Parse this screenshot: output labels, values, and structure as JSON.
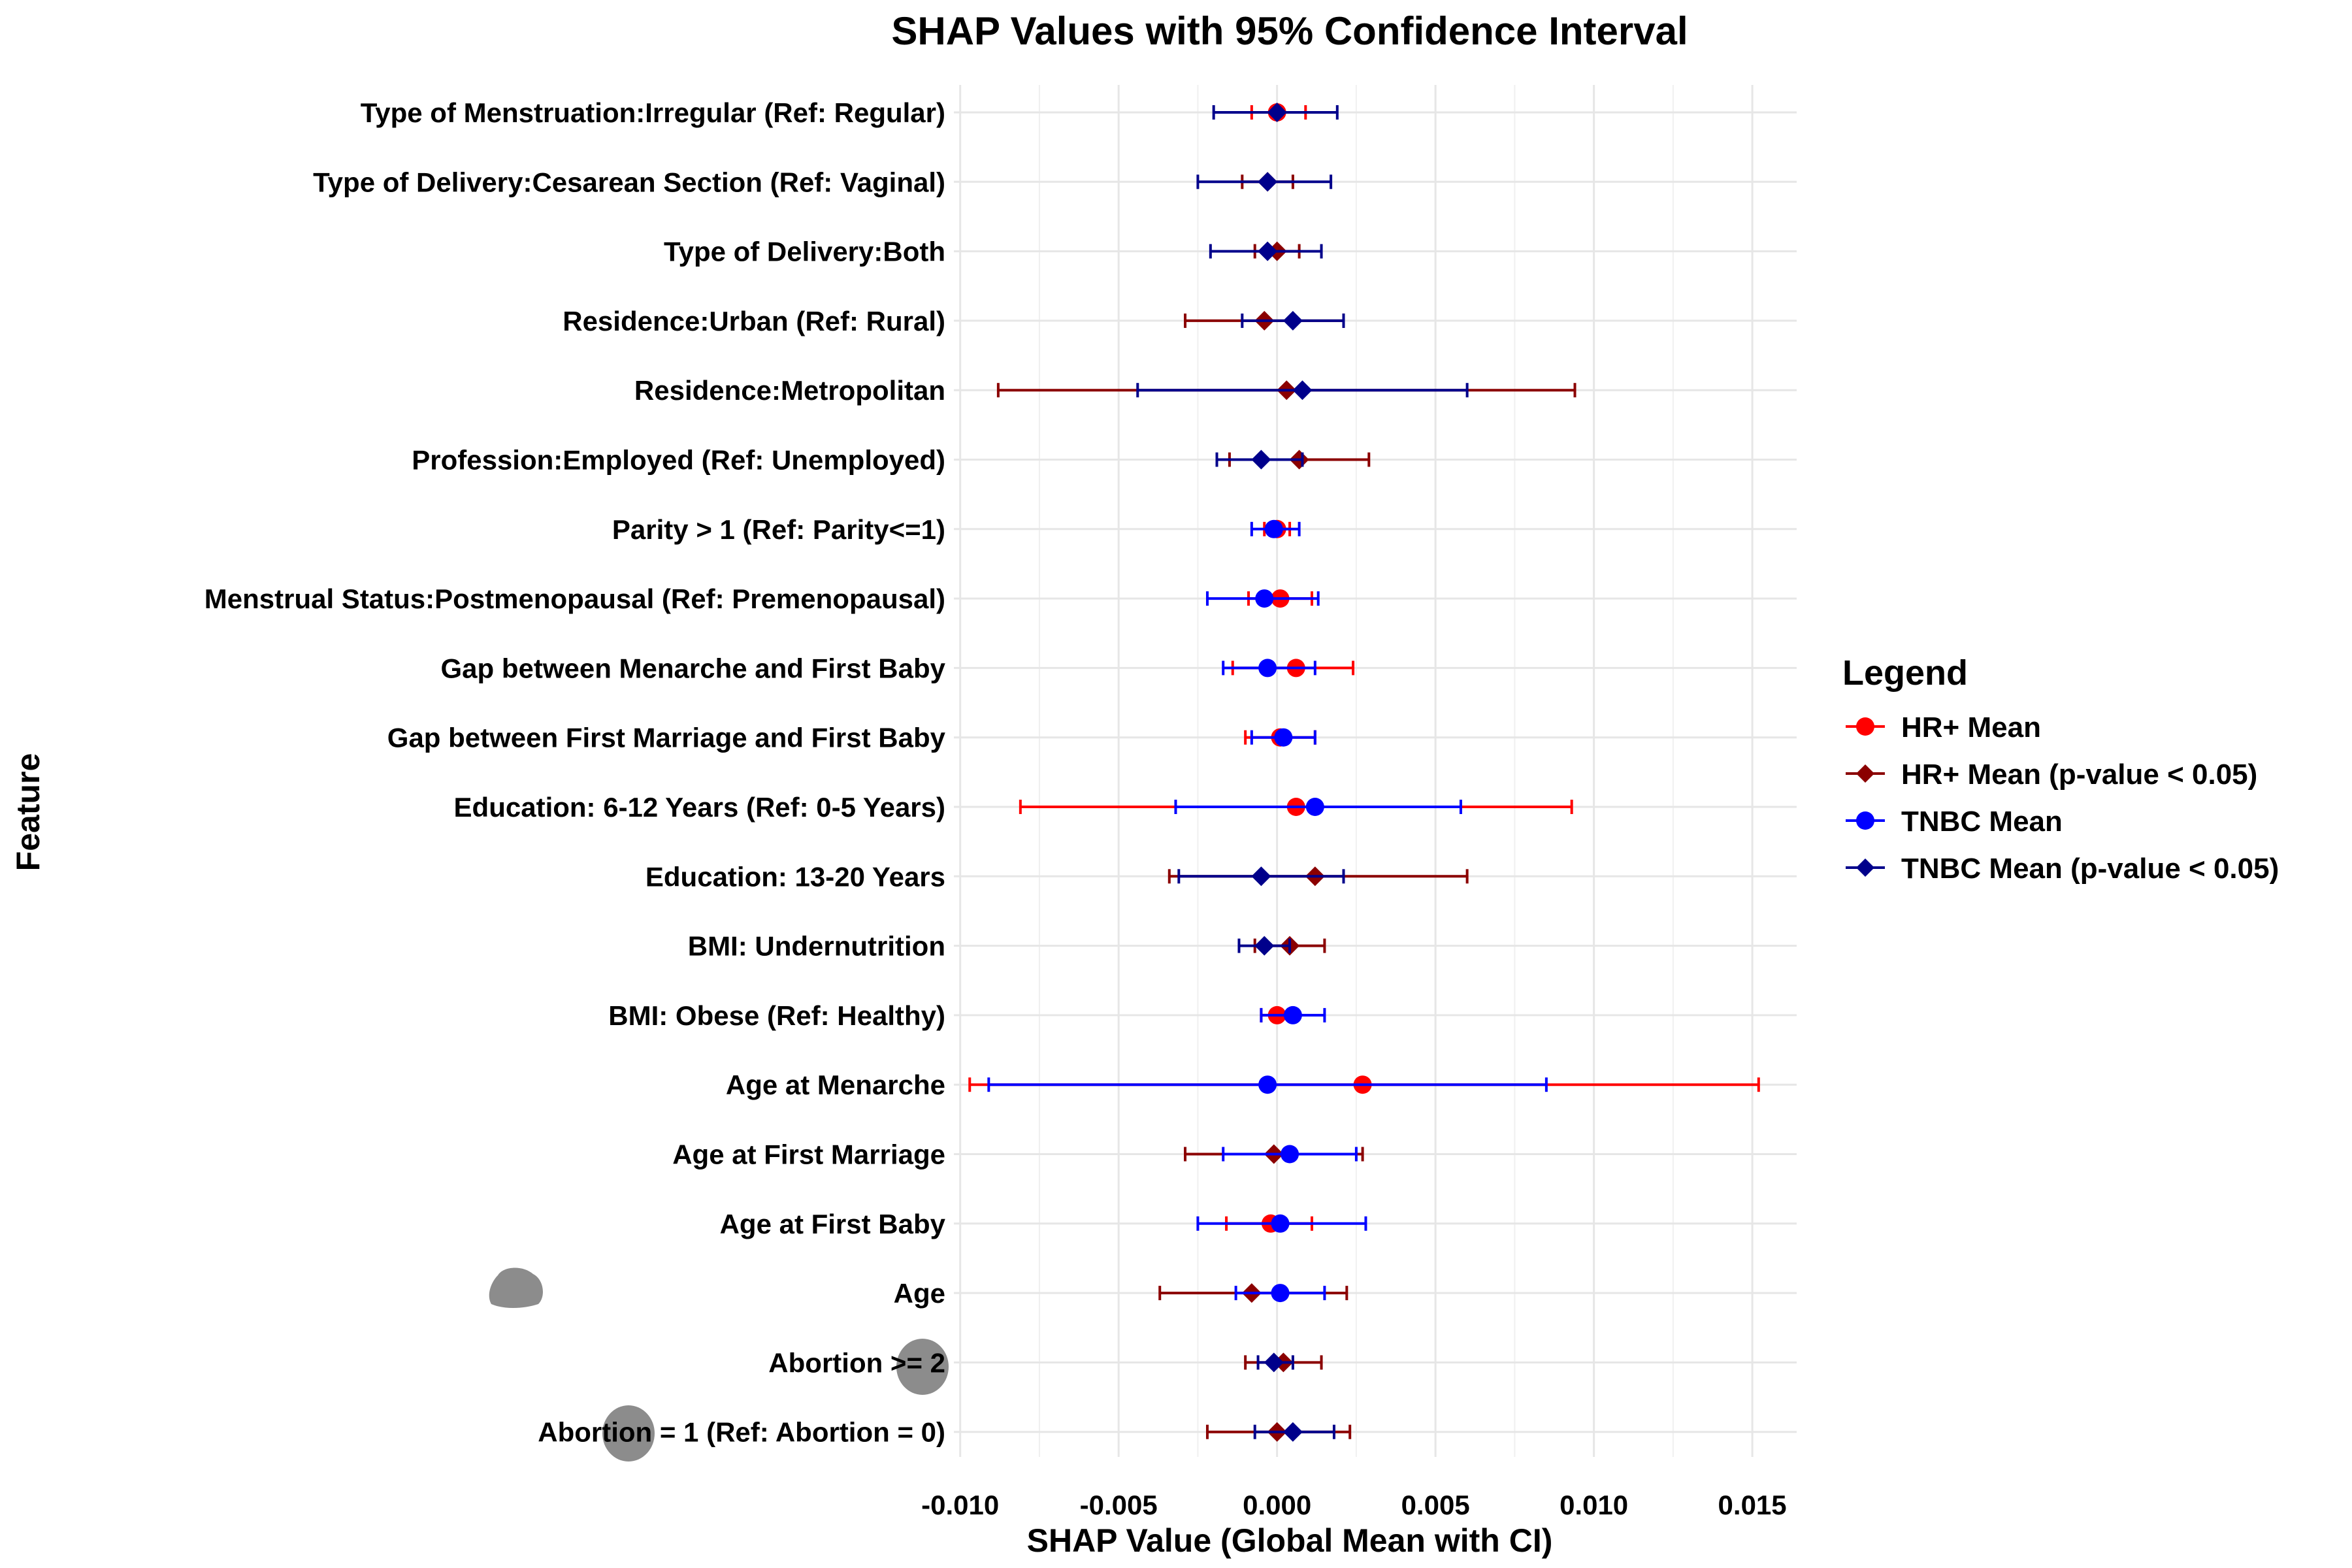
{
  "chart_data": {
    "type": "scatter",
    "title": "SHAP Values with 95% Confidence Interval",
    "xlabel": "SHAP Value (Global Mean with CI)",
    "ylabel": "Feature",
    "xlim": [
      -0.0102,
      0.0164
    ],
    "xticks": [
      -0.01,
      -0.005,
      0.0,
      0.005,
      0.01,
      0.015
    ],
    "xtick_labels": [
      "-0.010",
      "-0.005",
      "0.000",
      "0.005",
      "0.010",
      "0.015"
    ],
    "grid": true,
    "legend": {
      "title": "Legend",
      "placement": "right",
      "entries": [
        {
          "label": "HR+ Mean",
          "color": "#ff0000",
          "marker": "circle"
        },
        {
          "label": "HR+ Mean (p-value < 0.05)",
          "color": "#8b0000",
          "marker": "diamond"
        },
        {
          "label": "TNBC Mean",
          "color": "#0000ff",
          "marker": "circle"
        },
        {
          "label": "TNBC Mean (p-value < 0.05)",
          "color": "#00008b",
          "marker": "diamond"
        }
      ]
    },
    "categories": [
      "Type of Menstruation:Irregular (Ref: Regular)",
      "Type of Delivery:Cesarean Section (Ref: Vaginal)",
      "Type of Delivery:Both",
      "Residence:Urban (Ref: Rural)",
      "Residence:Metropolitan",
      "Profession:Employed (Ref: Unemployed)",
      "Parity > 1 (Ref: Parity<=1)",
      "Menstrual Status:Postmenopausal (Ref: Premenopausal)",
      "Gap between Menarche and First Baby",
      "Gap between First Marriage and First Baby",
      "Education: 6-12 Years (Ref: 0-5 Years)",
      "Education: 13-20 Years",
      "BMI: Undernutrition",
      "BMI: Obese (Ref: Healthy)",
      "Age at Menarche",
      "Age at First Marriage",
      "Age at First Baby",
      "Age",
      "Abortion >= 2",
      "Abortion = 1 (Ref: Abortion = 0)"
    ],
    "series": [
      {
        "name": "HR+",
        "points": [
          {
            "mean": 0.0,
            "lo": -0.0008,
            "hi": 0.0009,
            "sig": false
          },
          {
            "mean": -0.0003,
            "lo": -0.0011,
            "hi": 0.0005,
            "sig": true
          },
          {
            "mean": 0.0,
            "lo": -0.0007,
            "hi": 0.0007,
            "sig": true
          },
          {
            "mean": -0.0004,
            "lo": -0.0029,
            "hi": 0.0021,
            "sig": true
          },
          {
            "mean": 0.0003,
            "lo": -0.0088,
            "hi": 0.0094,
            "sig": true
          },
          {
            "mean": 0.0007,
            "lo": -0.0015,
            "hi": 0.0029,
            "sig": true
          },
          {
            "mean": 0.0,
            "lo": -0.0004,
            "hi": 0.0004,
            "sig": false
          },
          {
            "mean": 0.0001,
            "lo": -0.0009,
            "hi": 0.0011,
            "sig": false
          },
          {
            "mean": 0.0006,
            "lo": -0.0014,
            "hi": 0.0024,
            "sig": false
          },
          {
            "mean": 0.0001,
            "lo": -0.001,
            "hi": 0.0012,
            "sig": false
          },
          {
            "mean": 0.0006,
            "lo": -0.0081,
            "hi": 0.0093,
            "sig": false
          },
          {
            "mean": 0.0012,
            "lo": -0.0034,
            "hi": 0.006,
            "sig": true
          },
          {
            "mean": 0.0004,
            "lo": -0.0007,
            "hi": 0.0015,
            "sig": true
          },
          {
            "mean": 0.0,
            "lo": -0.0005,
            "hi": 0.0005,
            "sig": false
          },
          {
            "mean": 0.0027,
            "lo": -0.0097,
            "hi": 0.0152,
            "sig": false
          },
          {
            "mean": -0.0001,
            "lo": -0.0029,
            "hi": 0.0027,
            "sig": true
          },
          {
            "mean": -0.0002,
            "lo": -0.0016,
            "hi": 0.0011,
            "sig": false
          },
          {
            "mean": -0.0008,
            "lo": -0.0037,
            "hi": 0.0022,
            "sig": true
          },
          {
            "mean": 0.0002,
            "lo": -0.001,
            "hi": 0.0014,
            "sig": true
          },
          {
            "mean": 0.0,
            "lo": -0.0022,
            "hi": 0.0023,
            "sig": true
          }
        ]
      },
      {
        "name": "TNBC",
        "points": [
          {
            "mean": 0.0,
            "lo": -0.002,
            "hi": 0.0019,
            "sig": true
          },
          {
            "mean": -0.0003,
            "lo": -0.0025,
            "hi": 0.0017,
            "sig": true
          },
          {
            "mean": -0.0003,
            "lo": -0.0021,
            "hi": 0.0014,
            "sig": true
          },
          {
            "mean": 0.0005,
            "lo": -0.0011,
            "hi": 0.0021,
            "sig": true
          },
          {
            "mean": 0.0008,
            "lo": -0.0044,
            "hi": 0.006,
            "sig": true
          },
          {
            "mean": -0.0005,
            "lo": -0.0019,
            "hi": 0.0008,
            "sig": true
          },
          {
            "mean": -0.0001,
            "lo": -0.0008,
            "hi": 0.0007,
            "sig": false
          },
          {
            "mean": -0.0004,
            "lo": -0.0022,
            "hi": 0.0013,
            "sig": false
          },
          {
            "mean": -0.0003,
            "lo": -0.0017,
            "hi": 0.0012,
            "sig": false
          },
          {
            "mean": 0.0002,
            "lo": -0.0008,
            "hi": 0.0012,
            "sig": false
          },
          {
            "mean": 0.0012,
            "lo": -0.0032,
            "hi": 0.0058,
            "sig": false
          },
          {
            "mean": -0.0005,
            "lo": -0.0031,
            "hi": 0.0021,
            "sig": true
          },
          {
            "mean": -0.0004,
            "lo": -0.0012,
            "hi": 0.0004,
            "sig": true
          },
          {
            "mean": 0.0005,
            "lo": -0.0005,
            "hi": 0.0015,
            "sig": false
          },
          {
            "mean": -0.0003,
            "lo": -0.0091,
            "hi": 0.0085,
            "sig": false
          },
          {
            "mean": 0.0004,
            "lo": -0.0017,
            "hi": 0.0025,
            "sig": false
          },
          {
            "mean": 0.0001,
            "lo": -0.0025,
            "hi": 0.0028,
            "sig": false
          },
          {
            "mean": 0.0001,
            "lo": -0.0013,
            "hi": 0.0015,
            "sig": false
          },
          {
            "mean": -0.0001,
            "lo": -0.0006,
            "hi": 0.0005,
            "sig": true
          },
          {
            "mean": 0.0005,
            "lo": -0.0007,
            "hi": 0.0018,
            "sig": true
          }
        ]
      }
    ]
  }
}
